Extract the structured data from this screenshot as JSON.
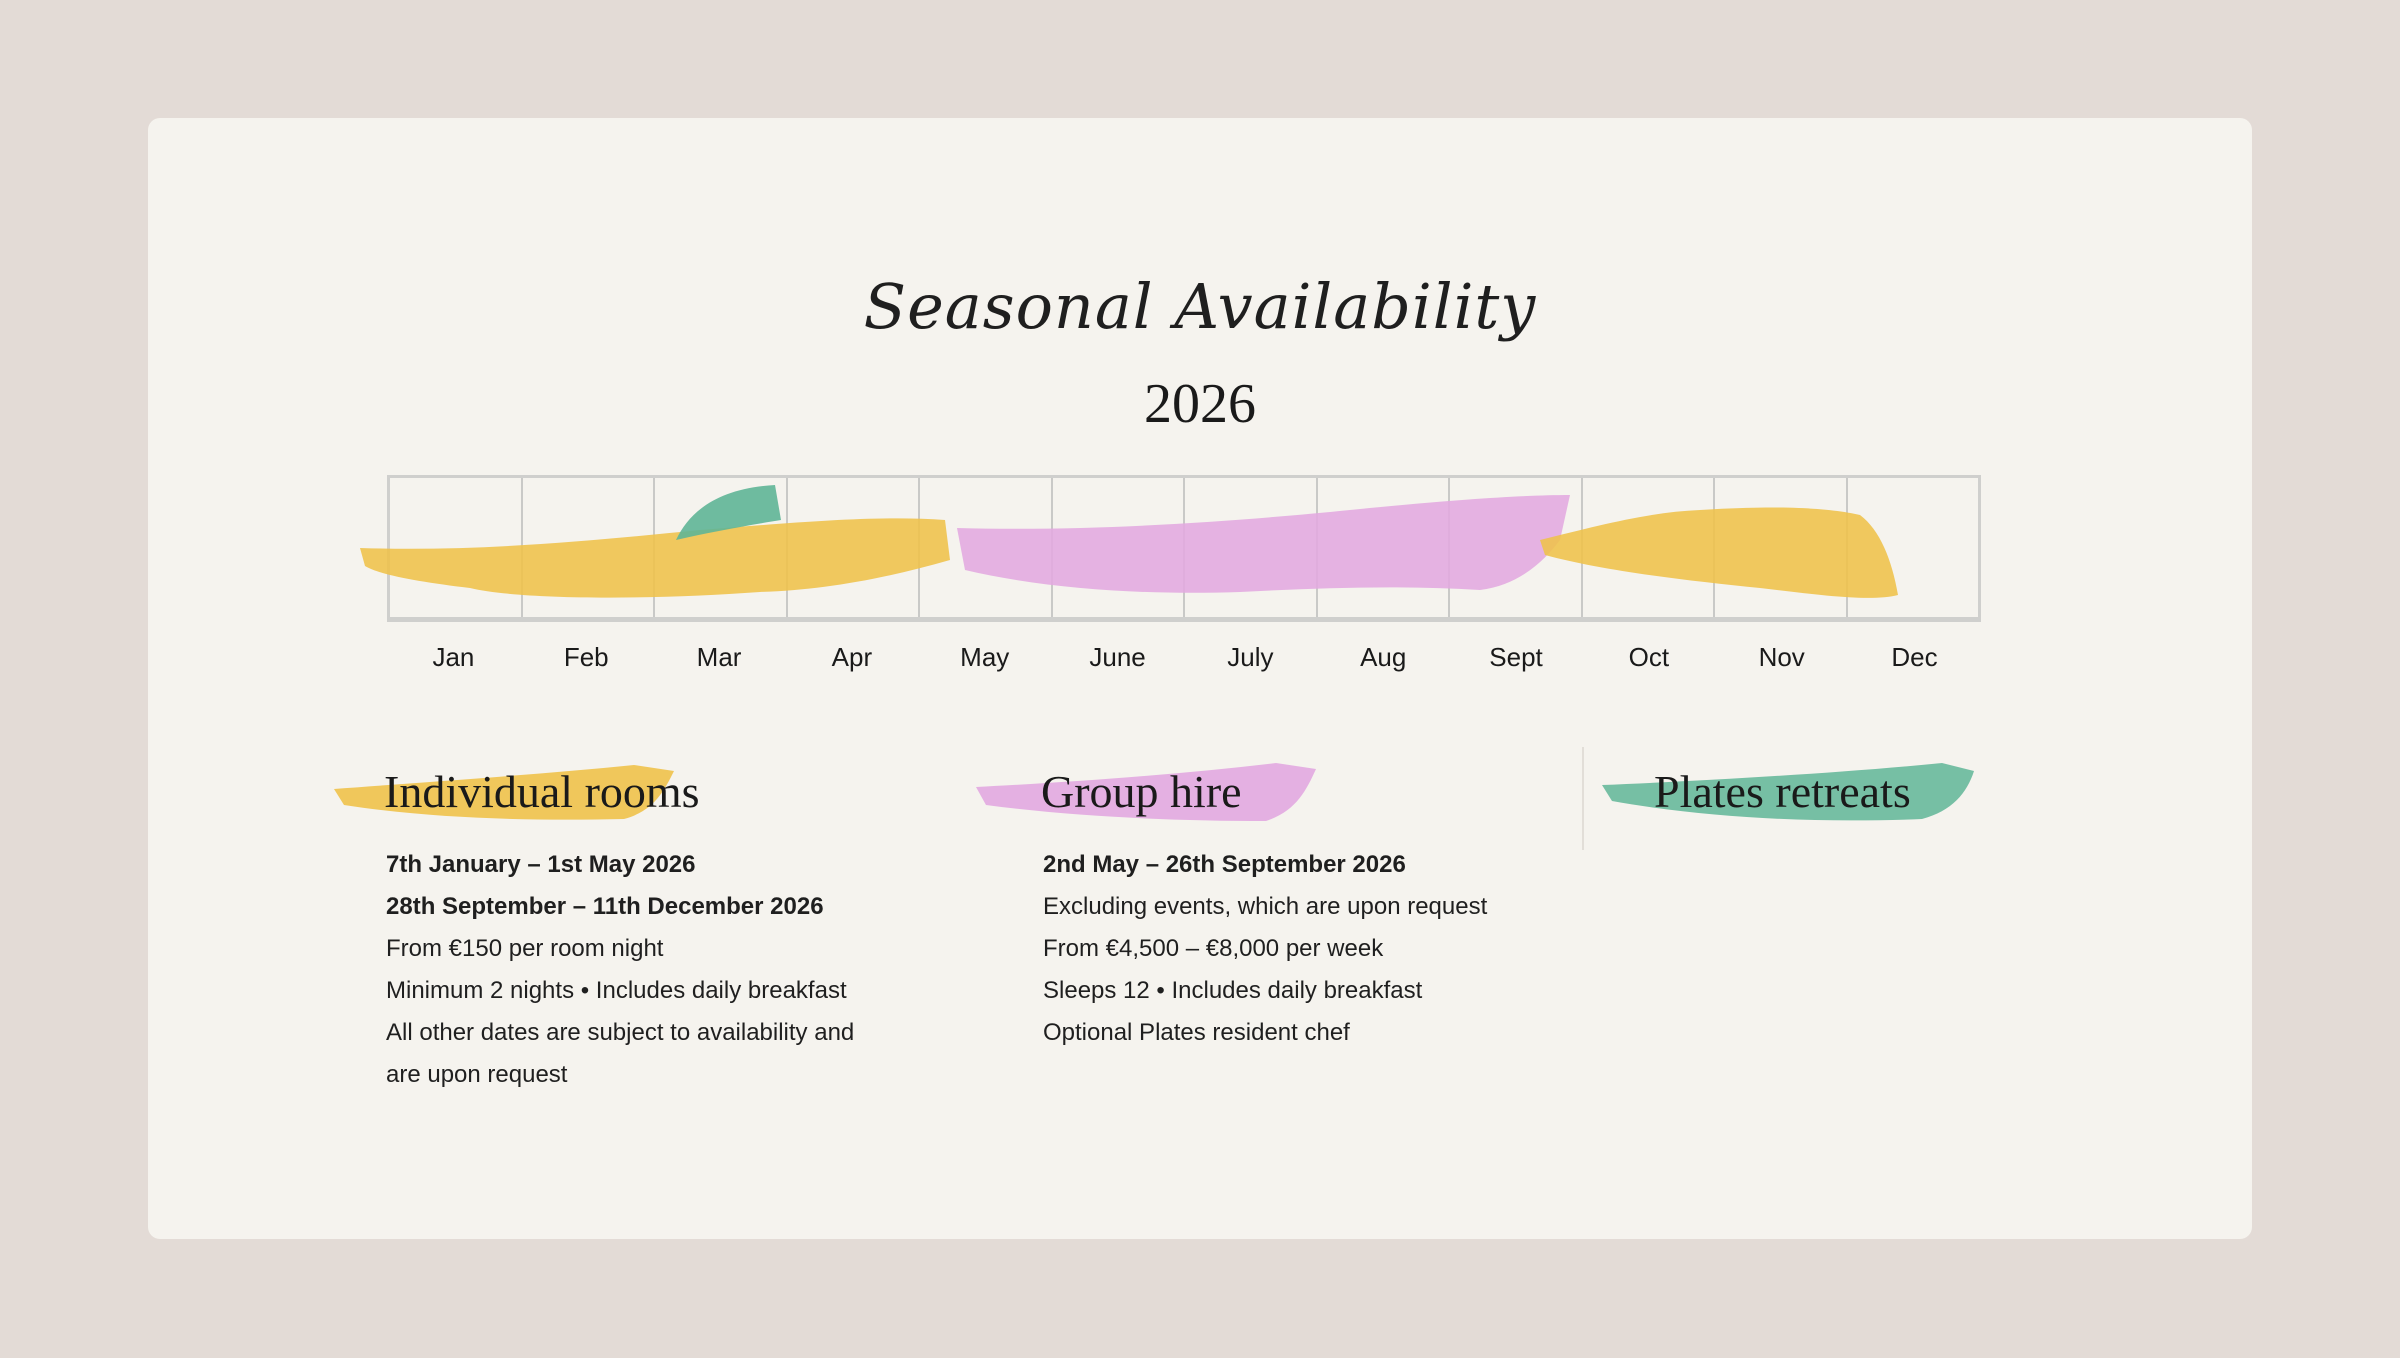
{
  "header": {
    "script_title": "Seasonal Availability",
    "year": "2026"
  },
  "timeline": {
    "months": [
      "Jan",
      "Feb",
      "Mar",
      "Apr",
      "May",
      "June",
      "July",
      "Aug",
      "Sept",
      "Oct",
      "Nov",
      "Dec"
    ],
    "colors": {
      "individual_rooms": "#efc24a",
      "group_hire": "#e2a9e0",
      "plates_retreats": "#5fb596"
    }
  },
  "legend": [
    {
      "title": "Individual rooms",
      "color": "#efc24a",
      "lines": [
        "7th January – 1st May 2026",
        "28th September – 11th December 2026",
        "From €150 per room night",
        "Minimum 2 nights • Includes daily breakfast",
        "All other dates are subject to availability and",
        "are upon request"
      ]
    },
    {
      "title": "Group hire",
      "color": "#e2a9e0",
      "lines": [
        "2nd May – 26th September 2026",
        "Excluding events, which are upon request",
        "From €4,500 –  €8,000 per week",
        "Sleeps 12 • Includes daily breakfast",
        "Optional Plates resident chef"
      ]
    },
    {
      "title": "Plates retreats",
      "color": "#5fb596",
      "lines": []
    }
  ]
}
